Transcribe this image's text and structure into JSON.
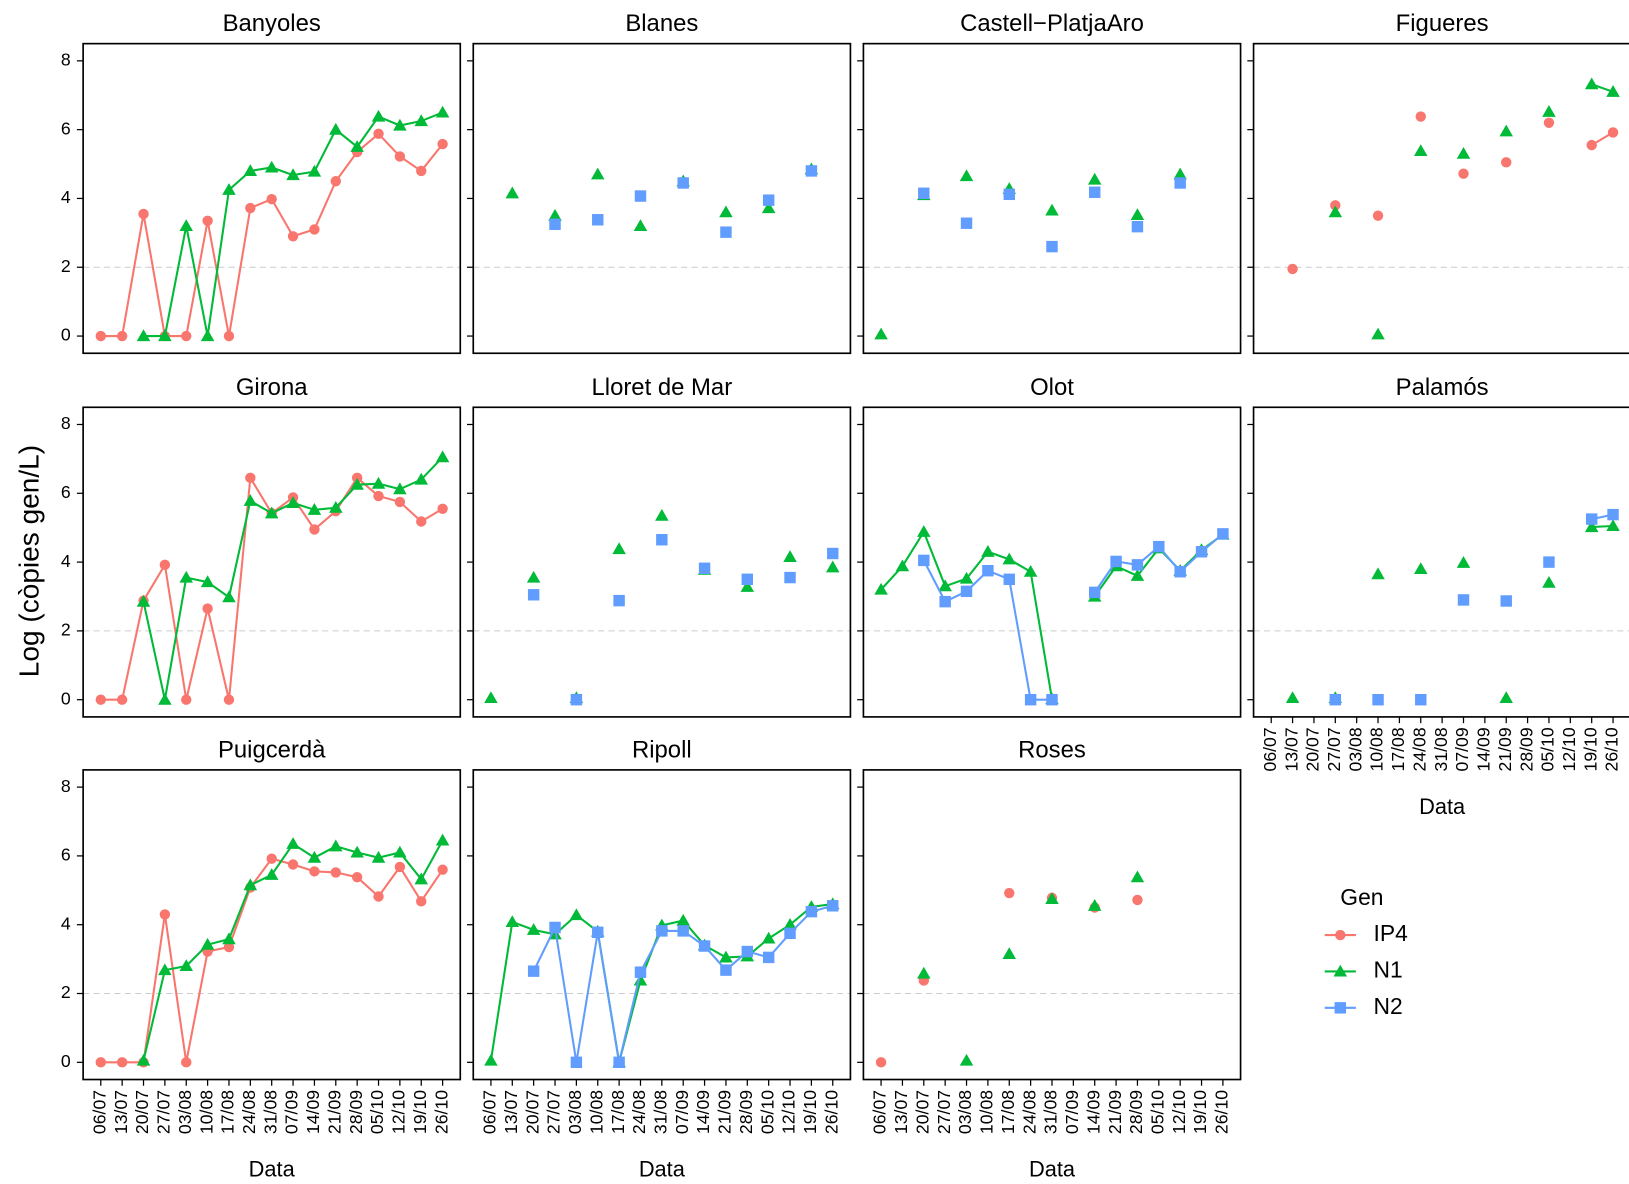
{
  "chart_data": {
    "type": "line",
    "ylabel": "Log (còpies gen/L)",
    "xlabel": "Data",
    "legend_title": "Gen",
    "categories": [
      "06/07",
      "13/07",
      "20/07",
      "27/07",
      "03/08",
      "10/08",
      "17/08",
      "24/08",
      "31/08",
      "07/09",
      "14/09",
      "21/09",
      "28/09",
      "05/10",
      "12/10",
      "19/10",
      "26/10"
    ],
    "ylim": [
      -0.5,
      8.5
    ],
    "yticks": [
      0,
      2,
      4,
      6,
      8
    ],
    "hline": 2,
    "series": [
      {
        "name": "IP4",
        "color": "#F8766D",
        "marker": "circle"
      },
      {
        "name": "N1",
        "color": "#00BA38",
        "marker": "triangle"
      },
      {
        "name": "N2",
        "color": "#619CFF",
        "marker": "square"
      }
    ],
    "panels": [
      {
        "title": "Banyoles",
        "values": [
          [
            0,
            0,
            3.55,
            0,
            0,
            3.35,
            0,
            3.72,
            3.98,
            2.9,
            3.1,
            4.5,
            5.35,
            5.88,
            5.22,
            4.8,
            5.58
          ],
          [
            null,
            null,
            0,
            0,
            3.2,
            0,
            4.25,
            4.8,
            4.9,
            4.68,
            4.78,
            6.0,
            5.5,
            6.38,
            6.12,
            6.25,
            6.5
          ],
          [
            null,
            null,
            null,
            null,
            null,
            null,
            null,
            null,
            null,
            null,
            null,
            null,
            null,
            null,
            null,
            null,
            null
          ]
        ]
      },
      {
        "title": "Blanes",
        "values": [
          [
            null,
            null,
            null,
            null,
            null,
            null,
            null,
            null,
            null,
            null,
            null,
            null,
            null,
            null,
            null,
            null,
            null
          ],
          [
            null,
            4.15,
            null,
            3.5,
            null,
            4.7,
            null,
            3.2,
            null,
            4.5,
            null,
            3.6,
            null,
            3.72,
            null,
            4.85,
            null
          ],
          [
            null,
            null,
            null,
            3.25,
            null,
            3.38,
            null,
            4.07,
            null,
            4.45,
            null,
            3.02,
            null,
            3.95,
            null,
            4.8,
            null
          ]
        ]
      },
      {
        "title": "Castell−PlatjaAro",
        "values": [
          [
            null,
            null,
            null,
            null,
            null,
            null,
            null,
            null,
            null,
            null,
            null,
            null,
            null,
            null,
            null,
            null,
            null
          ],
          [
            0.05,
            null,
            4.1,
            null,
            4.65,
            null,
            4.28,
            null,
            3.65,
            null,
            4.55,
            null,
            3.52,
            null,
            4.7,
            null,
            null
          ],
          [
            null,
            null,
            4.15,
            null,
            3.28,
            null,
            4.12,
            null,
            2.6,
            null,
            4.18,
            null,
            3.18,
            null,
            4.45,
            null,
            null
          ]
        ]
      },
      {
        "title": "Figueres",
        "values": [
          [
            null,
            1.95,
            null,
            3.8,
            null,
            3.5,
            null,
            6.38,
            null,
            4.72,
            null,
            5.05,
            null,
            6.2,
            null,
            5.55,
            5.92
          ],
          [
            null,
            null,
            null,
            3.6,
            null,
            0.05,
            null,
            5.38,
            null,
            5.3,
            null,
            5.95,
            null,
            6.52,
            null,
            7.32,
            7.1
          ],
          [
            null,
            null,
            null,
            null,
            null,
            null,
            null,
            null,
            null,
            null,
            null,
            null,
            null,
            null,
            null,
            null,
            null
          ]
        ]
      },
      {
        "title": "Girona",
        "values": [
          [
            0,
            0,
            2.88,
            3.92,
            0,
            2.65,
            0,
            6.45,
            5.42,
            5.88,
            4.95,
            5.48,
            6.45,
            5.92,
            5.75,
            5.18,
            5.55
          ],
          [
            null,
            null,
            2.85,
            0,
            3.55,
            3.42,
            2.98,
            5.78,
            5.42,
            5.72,
            5.52,
            5.58,
            6.25,
            6.28,
            6.12,
            6.4,
            7.05
          ],
          [
            null,
            null,
            null,
            null,
            null,
            null,
            null,
            null,
            null,
            null,
            null,
            null,
            null,
            null,
            null,
            null,
            null
          ]
        ]
      },
      {
        "title": "Lloret de Mar",
        "values": [
          [
            null,
            null,
            null,
            null,
            null,
            null,
            null,
            null,
            null,
            null,
            null,
            null,
            null,
            null,
            null,
            null,
            null
          ],
          [
            0.05,
            null,
            3.55,
            null,
            0.05,
            null,
            4.38,
            null,
            5.35,
            null,
            3.78,
            null,
            3.28,
            null,
            4.15,
            null,
            3.85
          ],
          [
            null,
            null,
            3.05,
            null,
            0,
            null,
            2.88,
            null,
            4.65,
            null,
            3.82,
            null,
            3.5,
            null,
            3.55,
            null,
            4.25
          ]
        ]
      },
      {
        "title": "Olot",
        "values": [
          [
            null,
            null,
            null,
            null,
            null,
            null,
            null,
            null,
            null,
            null,
            null,
            null,
            null,
            null,
            null,
            null,
            null
          ],
          [
            3.2,
            3.88,
            4.88,
            3.3,
            3.52,
            4.3,
            4.08,
            3.72,
            0.02,
            null,
            3.0,
            3.88,
            3.6,
            4.4,
            3.75,
            4.35,
            4.8
          ],
          [
            null,
            null,
            4.05,
            2.85,
            3.15,
            3.75,
            3.5,
            0,
            0,
            null,
            3.12,
            4.02,
            3.92,
            4.45,
            3.72,
            4.3,
            4.82
          ]
        ]
      },
      {
        "title": "Palamós",
        "values": [
          [
            null,
            null,
            null,
            null,
            null,
            null,
            null,
            null,
            null,
            null,
            null,
            null,
            null,
            null,
            null,
            null,
            null
          ],
          [
            null,
            0.05,
            null,
            0.05,
            null,
            3.65,
            null,
            3.8,
            null,
            3.98,
            null,
            0.05,
            null,
            3.4,
            null,
            5.02,
            5.05
          ],
          [
            null,
            null,
            null,
            0,
            null,
            0,
            null,
            0,
            null,
            2.9,
            null,
            2.87,
            null,
            4.0,
            null,
            5.25,
            5.38
          ]
        ]
      },
      {
        "title": "Puigcerdà",
        "values": [
          [
            0,
            0,
            0,
            4.3,
            0,
            3.22,
            3.35,
            5.08,
            5.92,
            5.75,
            5.55,
            5.52,
            5.38,
            4.82,
            5.68,
            4.68,
            5.6
          ],
          [
            null,
            null,
            0.05,
            2.68,
            2.8,
            3.42,
            3.58,
            5.15,
            5.45,
            6.35,
            5.95,
            6.28,
            6.1,
            5.95,
            6.1,
            5.32,
            6.45
          ],
          [
            null,
            null,
            null,
            null,
            null,
            null,
            null,
            null,
            null,
            null,
            null,
            null,
            null,
            null,
            null,
            null,
            null
          ]
        ]
      },
      {
        "title": "Ripoll",
        "values": [
          [
            null,
            null,
            null,
            null,
            null,
            null,
            null,
            null,
            null,
            null,
            null,
            null,
            null,
            null,
            null,
            null,
            null
          ],
          [
            0.05,
            4.08,
            3.85,
            3.72,
            4.28,
            3.8,
            0,
            2.38,
            3.98,
            4.12,
            3.4,
            3.05,
            3.08,
            3.6,
            4.0,
            4.52,
            4.6
          ],
          [
            null,
            null,
            2.65,
            3.92,
            0,
            3.78,
            0,
            2.62,
            3.82,
            3.82,
            3.38,
            2.68,
            3.22,
            3.05,
            3.75,
            4.38,
            4.55
          ]
        ]
      },
      {
        "title": "Roses",
        "values": [
          [
            0,
            null,
            2.38,
            null,
            null,
            null,
            4.92,
            null,
            4.78,
            null,
            4.5,
            null,
            4.72,
            null,
            null,
            null,
            null
          ],
          [
            null,
            null,
            2.58,
            null,
            0.05,
            null,
            3.15,
            null,
            4.75,
            null,
            4.55,
            null,
            5.38,
            null,
            null,
            null,
            null
          ],
          [
            null,
            null,
            null,
            null,
            null,
            null,
            null,
            null,
            null,
            null,
            null,
            null,
            null,
            null,
            null,
            null,
            null
          ]
        ]
      }
    ]
  }
}
